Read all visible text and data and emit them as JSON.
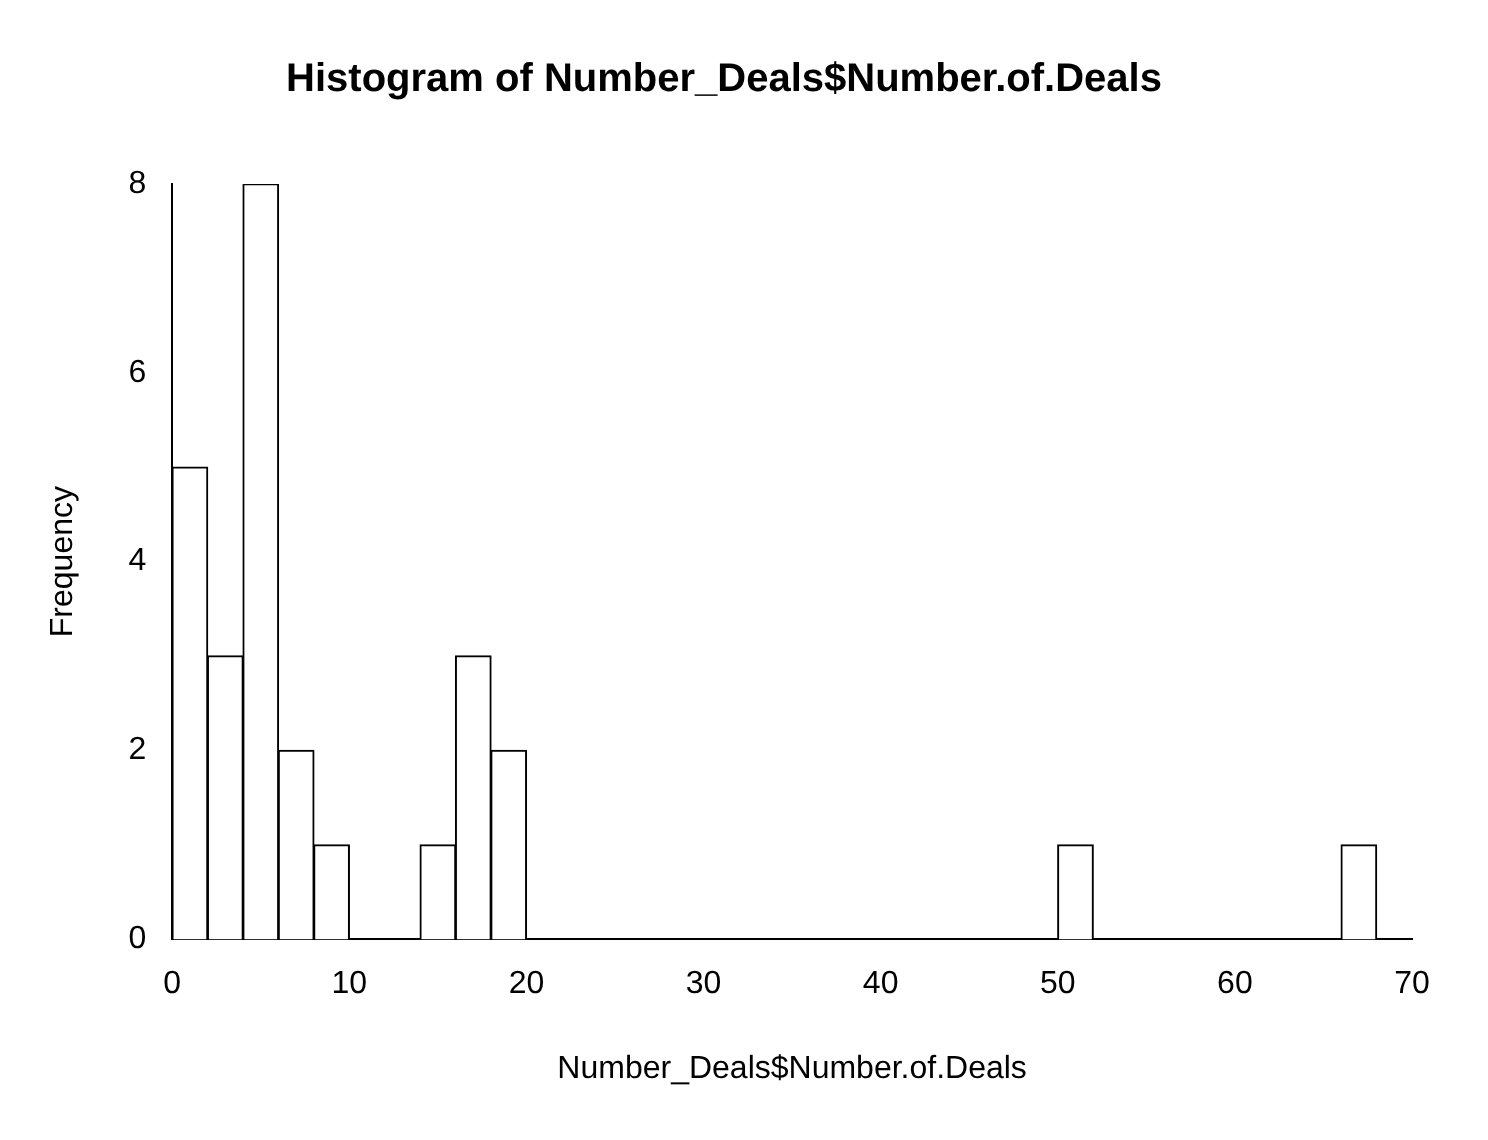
{
  "chart_data": {
    "type": "histogram",
    "title": "Histogram of Number_Deals$Number.of.Deals",
    "xlabel": "Number_Deals$Number.of.Deals",
    "ylabel": "Frequency",
    "bins": [
      0,
      2,
      4,
      6,
      8,
      10,
      12,
      14,
      16,
      18,
      20,
      22,
      24,
      26,
      28,
      30,
      32,
      34,
      36,
      38,
      40,
      42,
      44,
      46,
      48,
      50,
      52,
      54,
      56,
      58,
      60,
      62,
      64,
      66,
      68
    ],
    "values": [
      5,
      3,
      8,
      2,
      1,
      0,
      0,
      1,
      3,
      2,
      0,
      0,
      0,
      0,
      0,
      0,
      0,
      0,
      0,
      0,
      0,
      0,
      0,
      0,
      0,
      1,
      0,
      0,
      0,
      0,
      0,
      0,
      0,
      1
    ],
    "color": "#ffffff",
    "xlim": [
      0,
      70
    ],
    "xticks": [
      0,
      10,
      20,
      30,
      40,
      50,
      60,
      70
    ],
    "ylim": [
      0,
      8
    ],
    "yticks": [
      0,
      2,
      4,
      6,
      8
    ],
    "grid": false,
    "legend": false
  }
}
